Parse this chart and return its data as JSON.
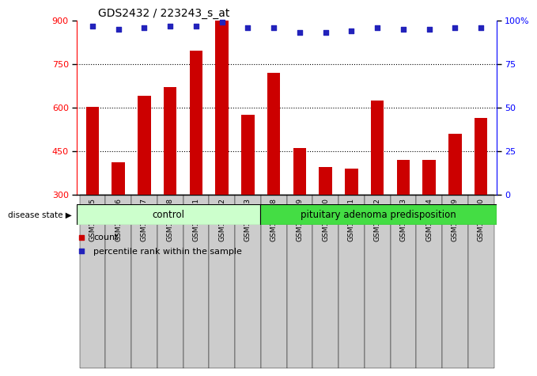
{
  "title": "GDS2432 / 223243_s_at",
  "samples": [
    "GSM100895",
    "GSM100896",
    "GSM100897",
    "GSM100898",
    "GSM100901",
    "GSM100902",
    "GSM100903",
    "GSM100888",
    "GSM100889",
    "GSM100890",
    "GSM100891",
    "GSM100892",
    "GSM100893",
    "GSM100894",
    "GSM100899",
    "GSM100900"
  ],
  "counts": [
    603,
    410,
    640,
    670,
    795,
    900,
    575,
    720,
    460,
    395,
    390,
    625,
    420,
    420,
    510,
    565
  ],
  "percentiles": [
    97,
    95,
    96,
    97,
    97,
    99,
    96,
    96,
    93,
    93,
    94,
    96,
    95,
    95,
    96,
    96
  ],
  "control_count": 7,
  "group1_label": "control",
  "group2_label": "pituitary adenoma predisposition",
  "disease_state_label": "disease state",
  "legend_count_label": "count",
  "legend_pct_label": "percentile rank within the sample",
  "ylim_left": [
    300,
    900
  ],
  "ylim_right": [
    0,
    100
  ],
  "yticks_left": [
    300,
    450,
    600,
    750,
    900
  ],
  "yticks_right": [
    0,
    25,
    50,
    75,
    100
  ],
  "bar_color": "#cc0000",
  "dot_color": "#2222bb",
  "bar_width": 0.5,
  "group1_color": "#ccffcc",
  "group2_color": "#44dd44",
  "tick_bg_color": "#cccccc",
  "gridline_ticks": [
    450,
    600,
    750
  ]
}
